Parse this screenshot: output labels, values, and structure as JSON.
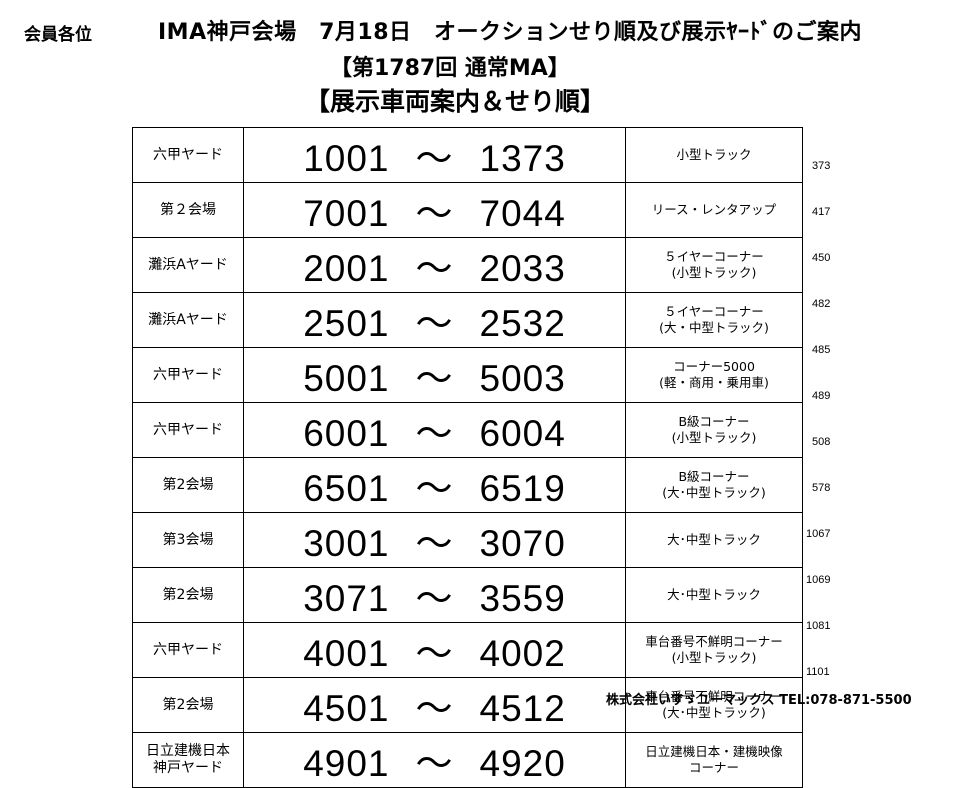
{
  "header": {
    "addressee": "会員各位",
    "title": "IMA神戸会場　7月18日　オークションせり順及び展示ﾔｰﾄﾞのご案内",
    "session": "【第1787回 通常MA】",
    "subtitle": "【展示車両案内＆せり順】"
  },
  "rows": [
    {
      "location": "六甲ヤード",
      "start": "1001",
      "end": "1373",
      "category": "小型トラック",
      "count": "373"
    },
    {
      "location": "第２会場",
      "start": "7001",
      "end": "7044",
      "category": "リース・レンタアップ",
      "count": "417"
    },
    {
      "location": "灘浜Aヤード",
      "start": "2001",
      "end": "2033",
      "category": "５イヤーコーナー\n(小型トラック)",
      "count": "450"
    },
    {
      "location": "灘浜Aヤード",
      "start": "2501",
      "end": "2532",
      "category": "５イヤーコーナー\n(大・中型トラック)",
      "count": "482"
    },
    {
      "location": "六甲ヤード",
      "start": "5001",
      "end": "5003",
      "category": "コーナー5000\n(軽・商用・乗用車)",
      "count": "485"
    },
    {
      "location": "六甲ヤード",
      "start": "6001",
      "end": "6004",
      "category": "B級コーナー\n(小型トラック)",
      "count": "489"
    },
    {
      "location": "第2会場",
      "start": "6501",
      "end": "6519",
      "category": "B級コーナー\n(大･中型トラック)",
      "count": "508"
    },
    {
      "location": "第3会場",
      "start": "3001",
      "end": "3070",
      "category": "大･中型トラック",
      "count": "578"
    },
    {
      "location": "第2会場",
      "start": "3071",
      "end": "3559",
      "category": "大･中型トラック",
      "count": "1067"
    },
    {
      "location": "六甲ヤード",
      "start": "4001",
      "end": "4002",
      "category": "車台番号不鮮明コーナー\n(小型トラック)",
      "count": "1069"
    },
    {
      "location": "第2会場",
      "start": "4501",
      "end": "4512",
      "category": "車台番号不鮮明コーナー\n(大･中型トラック)",
      "count": "1081"
    },
    {
      "location": "日立建機日本\n神戸ヤード",
      "start": "4901",
      "end": "4920",
      "category": "日立建機日本・建機映像\nコーナー",
      "count": "1101"
    }
  ],
  "range_separator": "～",
  "footer": {
    "company": "株式会社いすゞユーマックス TEL:078-871-5500"
  }
}
